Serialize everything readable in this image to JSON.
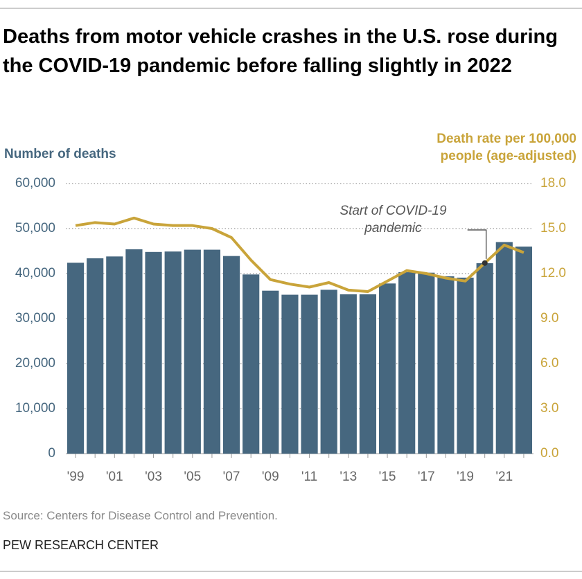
{
  "chart_data": {
    "type": "bar",
    "title": "Deaths from motor vehicle crashes in the U.S. rose during the COVID-19 pandemic before falling slightly in 2022",
    "y_label": "Number of deaths",
    "y2_label": "Death rate per 100,000 people (age-adjusted)",
    "annotation": "Start of COVID-19 pandemic",
    "source": "Source: Centers for Disease Control and Prevention.",
    "credit": "PEW RESEARCH CENTER",
    "categories": [
      "'99",
      null,
      "'01",
      null,
      "'03",
      null,
      "'05",
      null,
      "'07",
      null,
      "'09",
      null,
      "'11",
      null,
      "'13",
      null,
      "'15",
      null,
      "'17",
      null,
      "'19",
      null,
      "'21",
      null
    ],
    "series": [
      {
        "color": "#46677f",
        "values": [
          42400,
          43400,
          43800,
          45400,
          44800,
          44900,
          45300,
          45300,
          43900,
          39800,
          36200,
          35300,
          35300,
          36400,
          35400,
          35400,
          37800,
          40300,
          40200,
          39400,
          39100,
          42300,
          47000,
          46000
        ]
      },
      {
        "type": "line",
        "axis": "y2",
        "color": "#c9a43a",
        "values": [
          15.2,
          15.4,
          15.3,
          15.7,
          15.3,
          15.2,
          15.2,
          15.0,
          14.4,
          12.9,
          11.6,
          11.3,
          11.1,
          11.4,
          10.9,
          10.8,
          11.5,
          12.2,
          12.0,
          11.7,
          11.5,
          12.7,
          13.9,
          13.4
        ]
      }
    ],
    "annotation_index": 21,
    "ylim": [
      0,
      60000
    ],
    "yticks": [
      0,
      {
        "value": 10000,
        "label": "10,000"
      },
      {
        "value": 20000,
        "label": "20,000"
      },
      {
        "value": 30000,
        "label": "30,000"
      },
      {
        "value": 40000,
        "label": "40,000"
      },
      {
        "value": 50000,
        "label": "50,000"
      },
      {
        "value": 60000,
        "label": "60,000"
      }
    ],
    "y2lim": [
      0,
      18
    ],
    "y2ticks": [
      {
        "value": 0,
        "label": "0.0"
      },
      {
        "value": 3,
        "label": "3.0"
      },
      {
        "value": 6,
        "label": "6.0"
      },
      {
        "value": 9,
        "label": "9.0"
      },
      {
        "value": 12,
        "label": "12.0"
      },
      {
        "value": 15,
        "label": "15.0"
      },
      {
        "value": 18,
        "label": "18.0"
      }
    ],
    "grid": true
  }
}
